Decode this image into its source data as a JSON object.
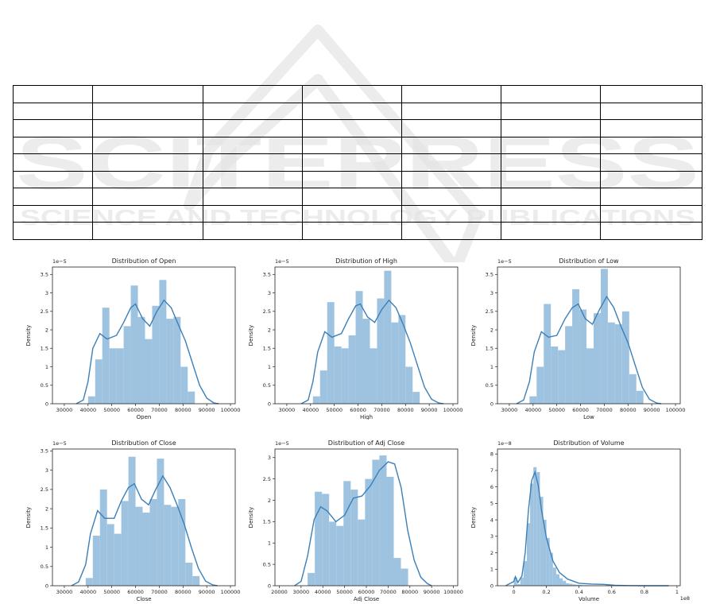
{
  "watermark": {
    "line1": "SCITEPRESS",
    "line2": "SCIENCE AND TECHNOLOGY PUBLICATIONS"
  },
  "table": {
    "rows": 9,
    "cols": 7
  },
  "colors": {
    "bar": "#9ec3e0",
    "kde": "#3b7fb8",
    "axis": "#222222"
  },
  "chart_data": [
    {
      "type": "bar",
      "title": "Distribution of Open",
      "xlabel": "Open",
      "ylabel": "Density",
      "offset": "1e−5",
      "xlim": [
        25000,
        102000
      ],
      "ylim": [
        0,
        3.7
      ],
      "xticks": [
        30000,
        40000,
        50000,
        60000,
        70000,
        80000,
        90000,
        100000
      ],
      "yticks": [
        0.0,
        0.5,
        1.0,
        1.5,
        2.0,
        2.5,
        3.0,
        3.5
      ],
      "bin_start": 40000,
      "bin_width": 3000,
      "values": [
        0.2,
        1.2,
        2.6,
        1.5,
        1.5,
        2.1,
        3.2,
        2.35,
        1.75,
        2.65,
        3.35,
        2.3,
        2.35,
        1.0,
        0.33
      ],
      "kde": [
        [
          35000,
          0.0
        ],
        [
          38000,
          0.1
        ],
        [
          40000,
          0.6
        ],
        [
          42000,
          1.5
        ],
        [
          45000,
          1.9
        ],
        [
          48000,
          1.75
        ],
        [
          52000,
          1.85
        ],
        [
          55000,
          2.2
        ],
        [
          58000,
          2.6
        ],
        [
          60000,
          2.7
        ],
        [
          63000,
          2.3
        ],
        [
          66000,
          2.1
        ],
        [
          69000,
          2.5
        ],
        [
          72000,
          2.8
        ],
        [
          75000,
          2.6
        ],
        [
          78000,
          2.15
        ],
        [
          81000,
          1.7
        ],
        [
          84000,
          1.1
        ],
        [
          87000,
          0.5
        ],
        [
          90000,
          0.15
        ],
        [
          93000,
          0.02
        ],
        [
          95000,
          0.0
        ]
      ]
    },
    {
      "type": "bar",
      "title": "Distribution of High",
      "xlabel": "High",
      "ylabel": "Density",
      "offset": "1e−5",
      "xlim": [
        25000,
        102000
      ],
      "ylim": [
        0,
        3.7
      ],
      "xticks": [
        30000,
        40000,
        50000,
        60000,
        70000,
        80000,
        90000,
        100000
      ],
      "yticks": [
        0.0,
        0.5,
        1.0,
        1.5,
        2.0,
        2.5,
        3.0,
        3.5
      ],
      "bin_start": 41000,
      "bin_width": 3000,
      "values": [
        0.2,
        0.9,
        2.75,
        1.55,
        1.5,
        1.85,
        3.05,
        2.3,
        1.5,
        2.85,
        3.6,
        2.2,
        2.4,
        1.0,
        0.32
      ],
      "kde": [
        [
          36000,
          0.0
        ],
        [
          39000,
          0.1
        ],
        [
          41000,
          0.6
        ],
        [
          43000,
          1.4
        ],
        [
          46000,
          1.95
        ],
        [
          49000,
          1.8
        ],
        [
          53000,
          1.9
        ],
        [
          56000,
          2.3
        ],
        [
          59000,
          2.65
        ],
        [
          61000,
          2.7
        ],
        [
          64000,
          2.35
        ],
        [
          67000,
          2.2
        ],
        [
          70000,
          2.55
        ],
        [
          73000,
          2.8
        ],
        [
          76000,
          2.6
        ],
        [
          79000,
          2.15
        ],
        [
          82000,
          1.65
        ],
        [
          85000,
          1.05
        ],
        [
          88000,
          0.45
        ],
        [
          91000,
          0.12
        ],
        [
          94000,
          0.02
        ],
        [
          96000,
          0.0
        ]
      ]
    },
    {
      "type": "bar",
      "title": "Distribution of Low",
      "xlabel": "Low",
      "ylabel": "Density",
      "offset": "1e−5",
      "xlim": [
        25000,
        102000
      ],
      "ylim": [
        0,
        3.7
      ],
      "xticks": [
        30000,
        40000,
        50000,
        60000,
        70000,
        80000,
        90000,
        100000
      ],
      "yticks": [
        0.0,
        0.5,
        1.0,
        1.5,
        2.0,
        2.5,
        3.0,
        3.5
      ],
      "bin_start": 38500,
      "bin_width": 3000,
      "values": [
        0.2,
        1.0,
        2.7,
        1.55,
        1.45,
        2.1,
        3.1,
        2.55,
        1.5,
        2.45,
        3.65,
        2.2,
        2.15,
        2.5,
        0.8,
        0.35
      ],
      "kde": [
        [
          33000,
          0.0
        ],
        [
          36000,
          0.1
        ],
        [
          38500,
          0.6
        ],
        [
          40500,
          1.4
        ],
        [
          43500,
          1.95
        ],
        [
          46500,
          1.8
        ],
        [
          50000,
          1.85
        ],
        [
          53500,
          2.3
        ],
        [
          56500,
          2.6
        ],
        [
          59000,
          2.7
        ],
        [
          62000,
          2.3
        ],
        [
          65000,
          2.15
        ],
        [
          68000,
          2.55
        ],
        [
          71000,
          2.9
        ],
        [
          74000,
          2.6
        ],
        [
          77000,
          2.1
        ],
        [
          80000,
          1.65
        ],
        [
          83000,
          1.05
        ],
        [
          86000,
          0.45
        ],
        [
          89000,
          0.12
        ],
        [
          92000,
          0.02
        ],
        [
          94000,
          0.0
        ]
      ]
    },
    {
      "type": "bar",
      "title": "Distribution of Close",
      "xlabel": "Close",
      "ylabel": "Density",
      "offset": "1e−5",
      "xlim": [
        25000,
        102000
      ],
      "ylim": [
        0,
        3.55
      ],
      "xticks": [
        30000,
        40000,
        50000,
        60000,
        70000,
        80000,
        90000,
        100000
      ],
      "yticks": [
        0.0,
        0.5,
        1.0,
        1.5,
        2.0,
        2.5,
        3.0,
        3.5
      ],
      "bin_start": 39000,
      "bin_width": 3000,
      "values": [
        0.2,
        1.3,
        2.5,
        1.6,
        1.35,
        2.2,
        3.35,
        2.05,
        1.9,
        2.25,
        3.3,
        2.1,
        2.05,
        2.25,
        0.6,
        0.25
      ],
      "kde": [
        [
          33000,
          0.0
        ],
        [
          36000,
          0.1
        ],
        [
          39000,
          0.55
        ],
        [
          41000,
          1.35
        ],
        [
          44000,
          1.95
        ],
        [
          47000,
          1.75
        ],
        [
          51000,
          1.75
        ],
        [
          54000,
          2.2
        ],
        [
          57000,
          2.55
        ],
        [
          59500,
          2.65
        ],
        [
          62500,
          2.25
        ],
        [
          65500,
          2.1
        ],
        [
          68500,
          2.5
        ],
        [
          71500,
          2.85
        ],
        [
          74500,
          2.55
        ],
        [
          77500,
          2.1
        ],
        [
          80500,
          1.6
        ],
        [
          83500,
          1.0
        ],
        [
          86500,
          0.45
        ],
        [
          89500,
          0.12
        ],
        [
          92500,
          0.02
        ],
        [
          94500,
          0.0
        ]
      ]
    },
    {
      "type": "bar",
      "title": "Distribution of Adj Close",
      "xlabel": "Adj Close",
      "ylabel": "Density",
      "offset": "1e−5",
      "xlim": [
        18000,
        102000
      ],
      "ylim": [
        0,
        3.2
      ],
      "xticks": [
        20000,
        30000,
        40000,
        50000,
        60000,
        70000,
        80000,
        90000,
        100000
      ],
      "yticks": [
        0.0,
        0.5,
        1.0,
        1.5,
        2.0,
        2.5,
        3.0
      ],
      "bin_start": 33000,
      "bin_width": 3300,
      "values": [
        0.3,
        2.2,
        2.15,
        1.5,
        1.4,
        2.45,
        2.25,
        1.55,
        2.5,
        2.95,
        3.05,
        2.55,
        0.65,
        0.4
      ],
      "kde": [
        [
          27000,
          0.0
        ],
        [
          30000,
          0.1
        ],
        [
          33000,
          0.7
        ],
        [
          36000,
          1.55
        ],
        [
          39000,
          1.85
        ],
        [
          42000,
          1.75
        ],
        [
          46000,
          1.5
        ],
        [
          50000,
          1.65
        ],
        [
          54000,
          2.05
        ],
        [
          58000,
          2.1
        ],
        [
          62000,
          2.35
        ],
        [
          66000,
          2.7
        ],
        [
          70000,
          2.9
        ],
        [
          73000,
          2.85
        ],
        [
          76000,
          2.3
        ],
        [
          79000,
          1.3
        ],
        [
          82000,
          0.6
        ],
        [
          85000,
          0.2
        ],
        [
          88000,
          0.05
        ],
        [
          90000,
          0.0
        ]
      ]
    },
    {
      "type": "bar",
      "title": "Distribution of Volume",
      "xlabel": "Volume",
      "ylabel": "Density",
      "offset": "1e−8",
      "xoffset": "1e8",
      "xlim": [
        -0.1,
        1.02
      ],
      "ylim": [
        0,
        8.3
      ],
      "xticks": [
        0.0,
        0.2,
        0.4,
        0.6,
        0.8,
        1.0
      ],
      "yticks": [
        0,
        1,
        2,
        3,
        4,
        5,
        6,
        7,
        8
      ],
      "bin_start": 0.0,
      "bin_width": 0.02,
      "values": [
        0.5,
        0.1,
        0.5,
        1.5,
        3.8,
        6.2,
        7.2,
        6.9,
        5.4,
        4.0,
        2.9,
        2.0,
        1.1,
        0.7,
        0.45,
        0.3,
        0.15,
        0.12,
        0.08,
        0.06,
        0.05,
        0.03,
        0.03,
        0.02,
        0.02,
        0.01,
        0.01,
        0.01,
        0.01,
        0.01
      ],
      "kde": [
        [
          -0.05,
          0.0
        ],
        [
          0.0,
          0.25
        ],
        [
          0.01,
          0.55
        ],
        [
          0.025,
          0.2
        ],
        [
          0.05,
          0.6
        ],
        [
          0.07,
          2.0
        ],
        [
          0.09,
          4.6
        ],
        [
          0.11,
          6.4
        ],
        [
          0.13,
          6.9
        ],
        [
          0.15,
          6.1
        ],
        [
          0.17,
          4.6
        ],
        [
          0.2,
          2.9
        ],
        [
          0.24,
          1.5
        ],
        [
          0.28,
          0.8
        ],
        [
          0.33,
          0.4
        ],
        [
          0.4,
          0.15
        ],
        [
          0.48,
          0.1
        ],
        [
          0.55,
          0.08
        ],
        [
          0.62,
          0.03
        ],
        [
          0.7,
          0.01
        ],
        [
          0.8,
          0.0
        ],
        [
          0.95,
          0.0
        ]
      ]
    }
  ]
}
